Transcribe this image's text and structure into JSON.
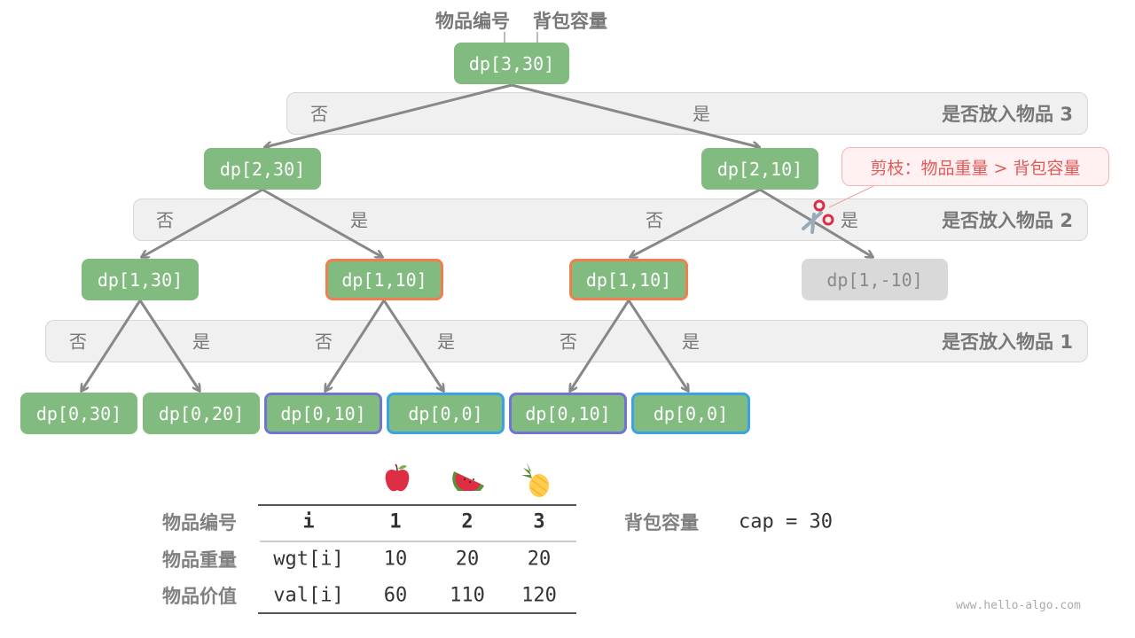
{
  "header": {
    "item_id_label": "物品编号",
    "capacity_label": "背包容量"
  },
  "levels": [
    {
      "label": "是否放入物品 3",
      "choices": [
        "否",
        "是"
      ]
    },
    {
      "label": "是否放入物品 2",
      "choices": [
        "否",
        "是",
        "否",
        "是"
      ]
    },
    {
      "label": "是否放入物品 1",
      "choices": [
        "否",
        "是",
        "否",
        "是",
        "否",
        "是"
      ]
    }
  ],
  "nodes": {
    "root": "dp[3,30]",
    "l1": [
      "dp[2,30]",
      "dp[2,10]"
    ],
    "l2": [
      "dp[1,30]",
      "dp[1,10]",
      "dp[1,10]",
      "dp[1,-10]"
    ],
    "l3": [
      "dp[0,30]",
      "dp[0,20]",
      "dp[0,10]",
      "dp[0,0]",
      "dp[0,10]",
      "dp[0,0]"
    ]
  },
  "prune_note": "剪枝：物品重量 > 背包容量",
  "icons": {
    "prune": "scissors-icon",
    "fruits": [
      "apple-icon",
      "watermelon-icon",
      "pineapple-icon"
    ]
  },
  "colors": {
    "node": "#82bb7f",
    "repeat_l2": "#f07f4f",
    "repeat_a": "#7274d4",
    "repeat_b": "#3aa3e6",
    "pruned": "#d9d9d9"
  },
  "table": {
    "row_labels": [
      "物品编号",
      "物品重量",
      "物品价值"
    ],
    "rows": [
      [
        "i",
        "1",
        "2",
        "3"
      ],
      [
        "wgt[i]",
        "10",
        "20",
        "20"
      ],
      [
        "val[i]",
        "60",
        "110",
        "120"
      ]
    ]
  },
  "capacity": {
    "label": "背包容量",
    "value": "cap = 30"
  },
  "watermark": "www.hello-algo.com"
}
